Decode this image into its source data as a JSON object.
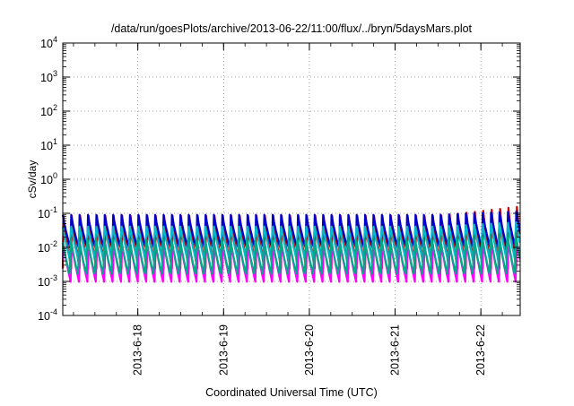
{
  "chart_data": {
    "type": "line",
    "title": "/data/run/goesPlots/archive/2013-06-22/11:00/flux/../bryn/5daysMars.plot",
    "xlabel": "Coordinated Universal Time (UTC)",
    "ylabel": "cSv/day",
    "yscale": "log",
    "ylim": [
      0.0001,
      10000
    ],
    "xlim": [
      "2013-06-17T03:00",
      "2013-06-22T11:00"
    ],
    "x_ticks": [
      "2013-6-18",
      "2013-6-19",
      "2013-6-20",
      "2013-6-21",
      "2013-6-22"
    ],
    "y_ticks": [
      {
        "base": "10",
        "exp": "-4"
      },
      {
        "base": "10",
        "exp": "-3"
      },
      {
        "base": "10",
        "exp": "-2"
      },
      {
        "base": "10",
        "exp": "-1"
      },
      {
        "base": "10",
        "exp": "0"
      },
      {
        "base": "10",
        "exp": "1"
      },
      {
        "base": "10",
        "exp": "2"
      },
      {
        "base": "10",
        "exp": "3"
      },
      {
        "base": "10",
        "exp": "4"
      }
    ],
    "grid": true,
    "legend": "none",
    "oscillation_period_hours": 2.35,
    "series": [
      {
        "color": "#cc0000",
        "peak": 0.085,
        "trough": 0.0024,
        "late_peak": 0.16
      },
      {
        "color": "#ff00ff",
        "peak": 0.015,
        "trough": 0.0009,
        "late_peak": 0.02
      },
      {
        "color": "#0000cc",
        "peak": 0.095,
        "trough": 0.009,
        "late_peak": 0.12
      },
      {
        "color": "#00bbcc",
        "peak": 0.05,
        "trough": 0.004,
        "late_peak": 0.07
      },
      {
        "color": "#00aa88",
        "peak": 0.02,
        "trough": 0.0015,
        "late_peak": 0.03
      }
    ]
  }
}
